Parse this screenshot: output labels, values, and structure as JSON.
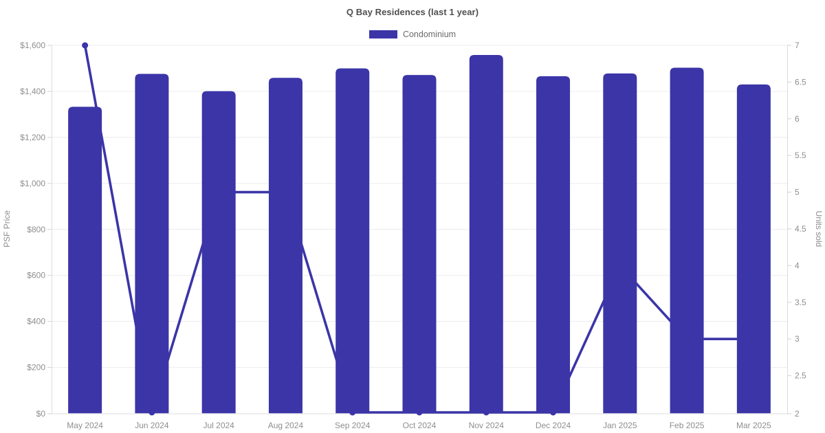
{
  "chart_data": {
    "type": "combo-bar-line",
    "title": "Q Bay Residences (last 1 year)",
    "categories": [
      "May 2024",
      "Jun 2024",
      "Jul 2024",
      "Aug 2024",
      "Sep 2024",
      "Oct 2024",
      "Nov 2024",
      "Dec 2024",
      "Jan 2025",
      "Feb 2025",
      "Mar 2025"
    ],
    "series": [
      {
        "name": "Condominium",
        "type": "bar",
        "axis": "left",
        "values": [
          1333,
          1476,
          1401,
          1459,
          1500,
          1471,
          1558,
          1466,
          1478,
          1503,
          1430
        ]
      },
      {
        "name": "Units sold",
        "type": "line",
        "axis": "right",
        "values": [
          7,
          2,
          5,
          5,
          2,
          2,
          2,
          2,
          4,
          3,
          3
        ]
      }
    ],
    "legend": {
      "label": "Condominium",
      "position": "top"
    },
    "axes": {
      "left": {
        "label": "PSF Price",
        "min": 0,
        "max": 1600,
        "tick_step": 200,
        "tick_format": "$#,###"
      },
      "right": {
        "label": "Units sold",
        "min": 2,
        "max": 7,
        "tick_step": 0.5
      }
    },
    "grid": "horizontal-left-axis-only",
    "colors": {
      "bar": "#3b35a8",
      "line": "#3b35a8",
      "grid": "#ececec",
      "axis_border": "#dcdcdc",
      "tick_mark": "#d2d2d2",
      "tick_text": "#8e8e8e",
      "title_text": "#4f4f4f",
      "legend_text": "#6b6b6b"
    }
  }
}
